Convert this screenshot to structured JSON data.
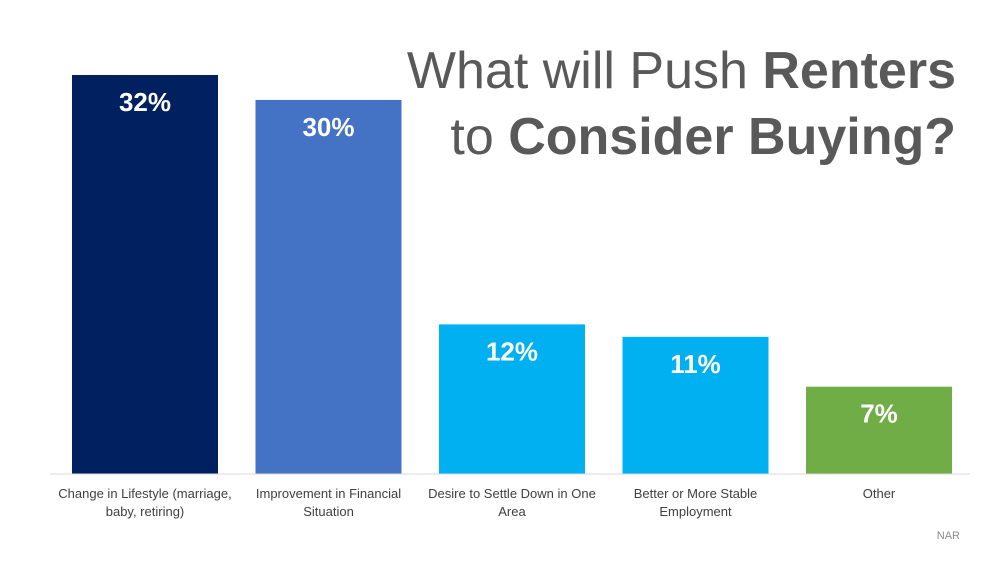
{
  "title": {
    "line1_regular": "What will Push ",
    "line1_bold": "Renters",
    "line2_regular": "to ",
    "line2_bold": "Consider Buying?"
  },
  "source": "NAR",
  "colors": {
    "dark_navy": "#002060",
    "medium_blue": "#4472C4",
    "light_blue": "#00B0F0",
    "green": "#70AD47",
    "title_gray": "#595959",
    "axis_gray": "#d9d9d9"
  },
  "chart_data": {
    "type": "bar",
    "title": "What will Push Renters to Consider Buying?",
    "xlabel": "",
    "ylabel": "",
    "ylim": [
      0,
      32
    ],
    "grid": false,
    "categories": [
      [
        "Change in Lifestyle (marriage,",
        "baby, retiring)"
      ],
      [
        "Improvement in Financial",
        "Situation"
      ],
      [
        "Desire to Settle Down in One",
        "Area"
      ],
      [
        "Better or More Stable",
        "Employment"
      ],
      [
        "Other"
      ]
    ],
    "values": [
      32,
      30,
      12,
      11,
      7
    ],
    "value_labels": [
      "32%",
      "30%",
      "12%",
      "11%",
      "7%"
    ],
    "bar_colors": [
      "#002060",
      "#4472C4",
      "#00B0F0",
      "#00B0F0",
      "#70AD47"
    ]
  }
}
